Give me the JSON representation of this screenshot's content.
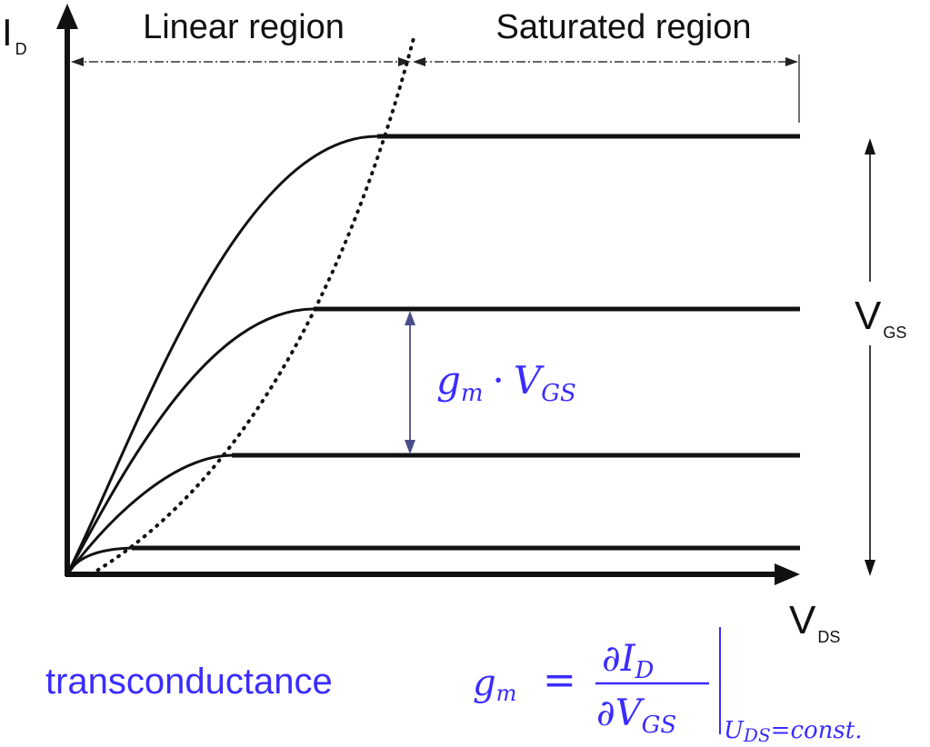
{
  "axes": {
    "y_label_main": "I",
    "y_label_sub": "D",
    "x_label_main": "V",
    "x_label_sub": "DS"
  },
  "regions": {
    "linear": "Linear region",
    "saturated": "Saturated region"
  },
  "vgs_indicator": {
    "main": "V",
    "sub": "GS"
  },
  "step_annotation": {
    "g": "g",
    "g_sub": "m",
    "dot": "·",
    "v": "V",
    "v_sub": "GS"
  },
  "formula": {
    "word": "transconductance",
    "lhs": "g",
    "lhs_sub": "m",
    "equals": "=",
    "num_partial": "∂",
    "num_var": "I",
    "num_sub": "D",
    "den_partial": "∂",
    "den_var": "V",
    "den_sub": "GS",
    "condition": "U",
    "condition_sub": "DS",
    "condition_rest": "=const."
  },
  "colors": {
    "line": "#111111",
    "accent": "#3a2cff",
    "arrow_gm": "#4a4f8a"
  }
}
